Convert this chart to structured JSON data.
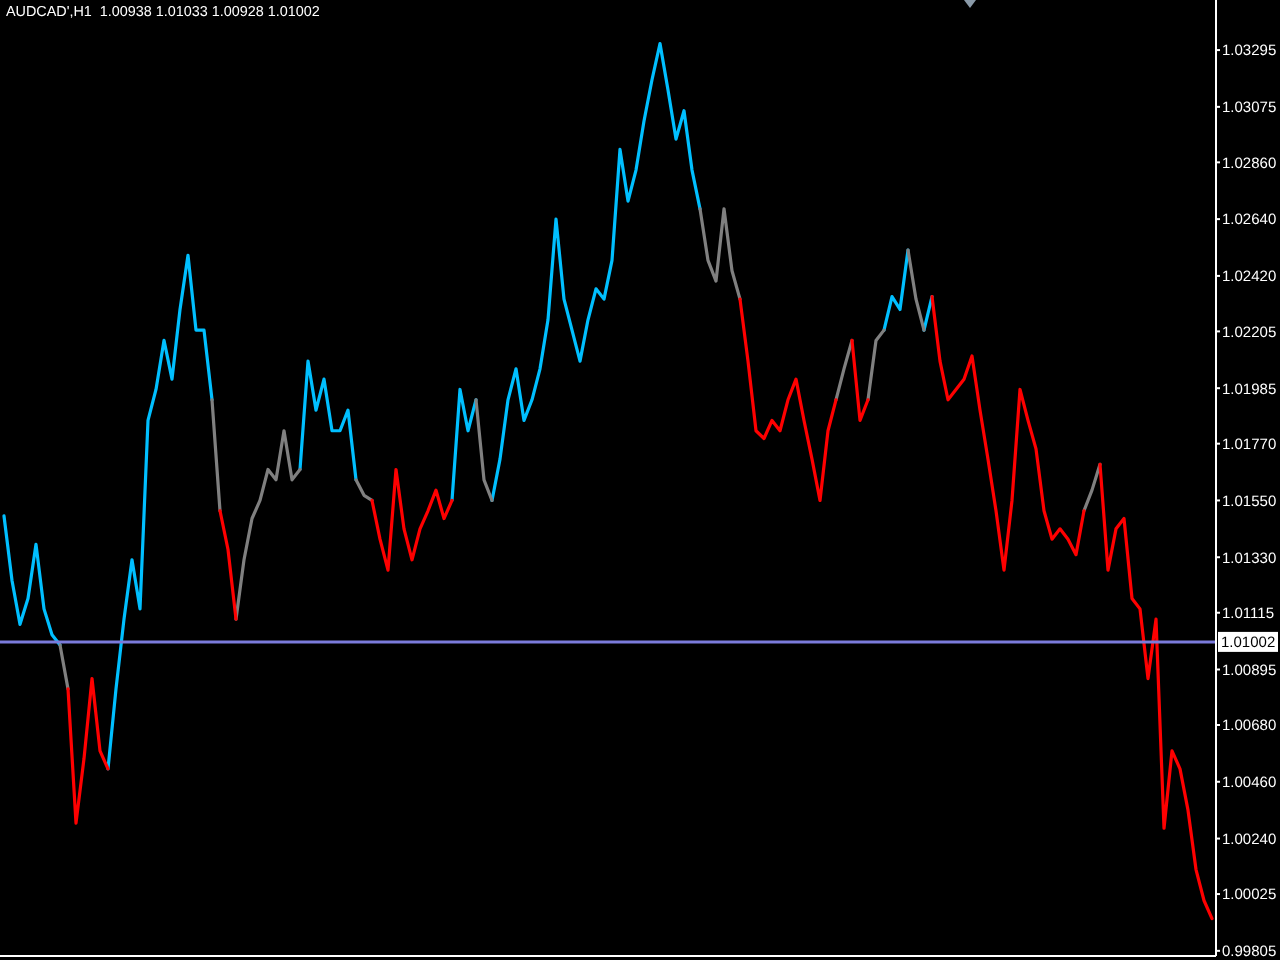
{
  "chart_data": {
    "type": "line",
    "title": "AUDCAD',H1  1.00938 1.01033 1.00928 1.01002",
    "categories": [
      null,
      null,
      null,
      null,
      null,
      null,
      null,
      null,
      null,
      null,
      null,
      null,
      null,
      null,
      null,
      null,
      null,
      null,
      null,
      null,
      null,
      null,
      null,
      null,
      null,
      null,
      null,
      null,
      null,
      null,
      null,
      null,
      null,
      null,
      null,
      null,
      null,
      null,
      null,
      null,
      null,
      null,
      null,
      null,
      null,
      null,
      null,
      null,
      null,
      null,
      null,
      null,
      null,
      null,
      null,
      null,
      null,
      null,
      null,
      null,
      null,
      null,
      null,
      null,
      null,
      null,
      null,
      null,
      null,
      null,
      null,
      null,
      null,
      null,
      null,
      null,
      null,
      null,
      null,
      null,
      null,
      null,
      null,
      null,
      null,
      null,
      null,
      null,
      null,
      null,
      null,
      null,
      null,
      null,
      null,
      null,
      null,
      null,
      null,
      null,
      null,
      null,
      null,
      null,
      null,
      null,
      null,
      null,
      null,
      null,
      null,
      null,
      null,
      null,
      null,
      null,
      null,
      null,
      null,
      null,
      null,
      null,
      null,
      null,
      null,
      null,
      null,
      null,
      null,
      null,
      null,
      null,
      null,
      null,
      null,
      null,
      null,
      null,
      null,
      null,
      null,
      null,
      null,
      null,
      null,
      null,
      null,
      null,
      null,
      null,
      null,
      null
    ],
    "series": [
      {
        "color": "#00bfff",
        "values": [
          1.0149,
          1.0124,
          1.0107,
          1.0117,
          1.0138,
          1.0113,
          1.0103,
          1.0099,
          null,
          null,
          null,
          null,
          null,
          1.0051,
          1.0082,
          1.0109,
          1.0132,
          1.0113,
          1.0186,
          1.0198,
          1.0217,
          1.0202,
          1.0229,
          1.025,
          1.0221,
          1.0221,
          1.0194,
          null,
          null,
          null,
          null,
          null,
          null,
          null,
          null,
          null,
          null,
          1.0167,
          1.0209,
          1.019,
          1.0202,
          1.0182,
          1.0182,
          1.019,
          1.0163,
          null,
          null,
          null,
          null,
          null,
          null,
          null,
          null,
          null,
          null,
          null,
          1.0155,
          1.0198,
          1.0182,
          1.0194,
          null,
          1.0155,
          1.0171,
          1.0194,
          1.0206,
          1.0186,
          1.0194,
          1.0206,
          1.0225,
          1.0264,
          1.0233,
          1.0221,
          1.0209,
          1.0225,
          1.0237,
          1.0233,
          1.0248,
          1.0291,
          1.0271,
          1.0283,
          1.0302,
          1.0318,
          1.0332,
          1.0314,
          1.0295,
          1.0306,
          1.0283,
          1.0268,
          null,
          null,
          null,
          null,
          null,
          null,
          null,
          null,
          null,
          null,
          null,
          null,
          null,
          null,
          null,
          null,
          null,
          null,
          null,
          null,
          null,
          null,
          1.0221,
          1.0234,
          1.0229,
          1.0252,
          null,
          1.0221,
          1.0234,
          null,
          null,
          null,
          null,
          null,
          null,
          null,
          null,
          null,
          null,
          null,
          null,
          null,
          null,
          null,
          null,
          null,
          null,
          null,
          null,
          null,
          null,
          null,
          null,
          null,
          null,
          null,
          null,
          null,
          null,
          null,
          null,
          null,
          null,
          null
        ]
      },
      {
        "color": "#808080",
        "values": [
          null,
          null,
          null,
          null,
          null,
          null,
          null,
          1.0099,
          1.0082,
          null,
          null,
          null,
          null,
          null,
          null,
          null,
          null,
          null,
          null,
          null,
          null,
          null,
          null,
          null,
          null,
          null,
          1.0194,
          1.0151,
          null,
          1.0109,
          1.0132,
          1.0148,
          1.0155,
          1.0167,
          1.0163,
          1.0182,
          1.0163,
          1.0167,
          null,
          null,
          null,
          null,
          null,
          null,
          1.0163,
          1.0157,
          1.0155,
          null,
          null,
          null,
          null,
          null,
          null,
          null,
          null,
          null,
          null,
          null,
          null,
          1.0194,
          1.0163,
          1.0155,
          null,
          null,
          null,
          null,
          null,
          null,
          null,
          null,
          null,
          null,
          null,
          null,
          null,
          null,
          null,
          null,
          null,
          null,
          null,
          null,
          null,
          null,
          null,
          null,
          null,
          1.0268,
          1.0248,
          1.024,
          1.0268,
          1.0244,
          1.0233,
          null,
          null,
          null,
          null,
          null,
          null,
          null,
          null,
          null,
          null,
          null,
          1.0194,
          1.0206,
          1.0217,
          null,
          1.0194,
          1.0217,
          1.0221,
          null,
          null,
          1.0252,
          1.0233,
          1.0221,
          null,
          null,
          null,
          null,
          null,
          null,
          null,
          null,
          null,
          null,
          null,
          null,
          null,
          null,
          null,
          null,
          null,
          null,
          null,
          1.0151,
          1.0159,
          1.0169,
          null,
          null,
          null,
          null,
          null,
          null,
          null,
          null,
          null,
          null,
          null,
          null,
          null,
          null
        ]
      },
      {
        "color": "#ff0000",
        "values": [
          null,
          null,
          null,
          null,
          null,
          null,
          null,
          null,
          1.0082,
          1.003,
          1.0055,
          1.0086,
          1.0058,
          1.0051,
          null,
          null,
          null,
          null,
          null,
          null,
          null,
          null,
          null,
          null,
          null,
          null,
          null,
          1.0151,
          1.0136,
          1.0109,
          null,
          null,
          null,
          null,
          null,
          null,
          null,
          null,
          null,
          null,
          null,
          null,
          null,
          null,
          null,
          null,
          1.0155,
          1.014,
          1.0128,
          1.0167,
          1.0144,
          1.0132,
          1.0144,
          1.0151,
          1.0159,
          1.0148,
          1.0155,
          null,
          null,
          null,
          null,
          null,
          null,
          null,
          null,
          null,
          null,
          null,
          null,
          null,
          null,
          null,
          null,
          null,
          null,
          null,
          null,
          null,
          null,
          null,
          null,
          null,
          null,
          null,
          null,
          null,
          null,
          null,
          null,
          null,
          null,
          null,
          1.0233,
          1.0209,
          1.0182,
          1.0179,
          1.0186,
          1.0182,
          1.0194,
          1.0202,
          1.0186,
          1.0171,
          1.0155,
          1.0182,
          1.0194,
          null,
          1.0217,
          1.0186,
          1.0194,
          null,
          null,
          null,
          null,
          null,
          null,
          null,
          1.0234,
          1.0209,
          1.0194,
          1.0198,
          1.0202,
          1.0211,
          1.019,
          1.0171,
          1.0151,
          1.0128,
          1.0155,
          1.0198,
          1.0186,
          1.0175,
          1.0151,
          1.014,
          1.0144,
          1.014,
          1.0134,
          1.0151,
          null,
          1.0169,
          1.0128,
          1.0144,
          1.0148,
          1.0117,
          1.0113,
          1.0086,
          1.0109,
          1.0028,
          1.0058,
          1.0051,
          1.0035,
          1.0012,
          1.0,
          0.9993
        ]
      }
    ],
    "ylim": [
      0.99785,
      1.03489
    ],
    "yticks": [
      1.03295,
      1.03075,
      {
        "value": 1.0286,
        "label": "1.02860"
      },
      {
        "value": 1.0264,
        "label": "1.02640"
      },
      {
        "value": 1.0242,
        "label": "1.02420"
      },
      1.02205,
      1.01985,
      {
        "value": 1.0177,
        "label": "1.01770"
      },
      {
        "value": 1.0155,
        "label": "1.01550"
      },
      {
        "value": 1.0133,
        "label": "1.01330"
      },
      1.01115,
      1.00895,
      {
        "value": 1.0068,
        "label": "1.00680"
      },
      {
        "value": 1.0046,
        "label": "1.00460"
      },
      {
        "value": 1.0024,
        "label": "1.00240"
      },
      1.00025,
      0.99805
    ],
    "ref_lines": [
      {
        "axis": "y",
        "value": 1.01002,
        "label": "1.01002",
        "color": "#7b7bdb"
      }
    ],
    "tick_labels": "y",
    "marker": "none",
    "line_style": "solid"
  }
}
